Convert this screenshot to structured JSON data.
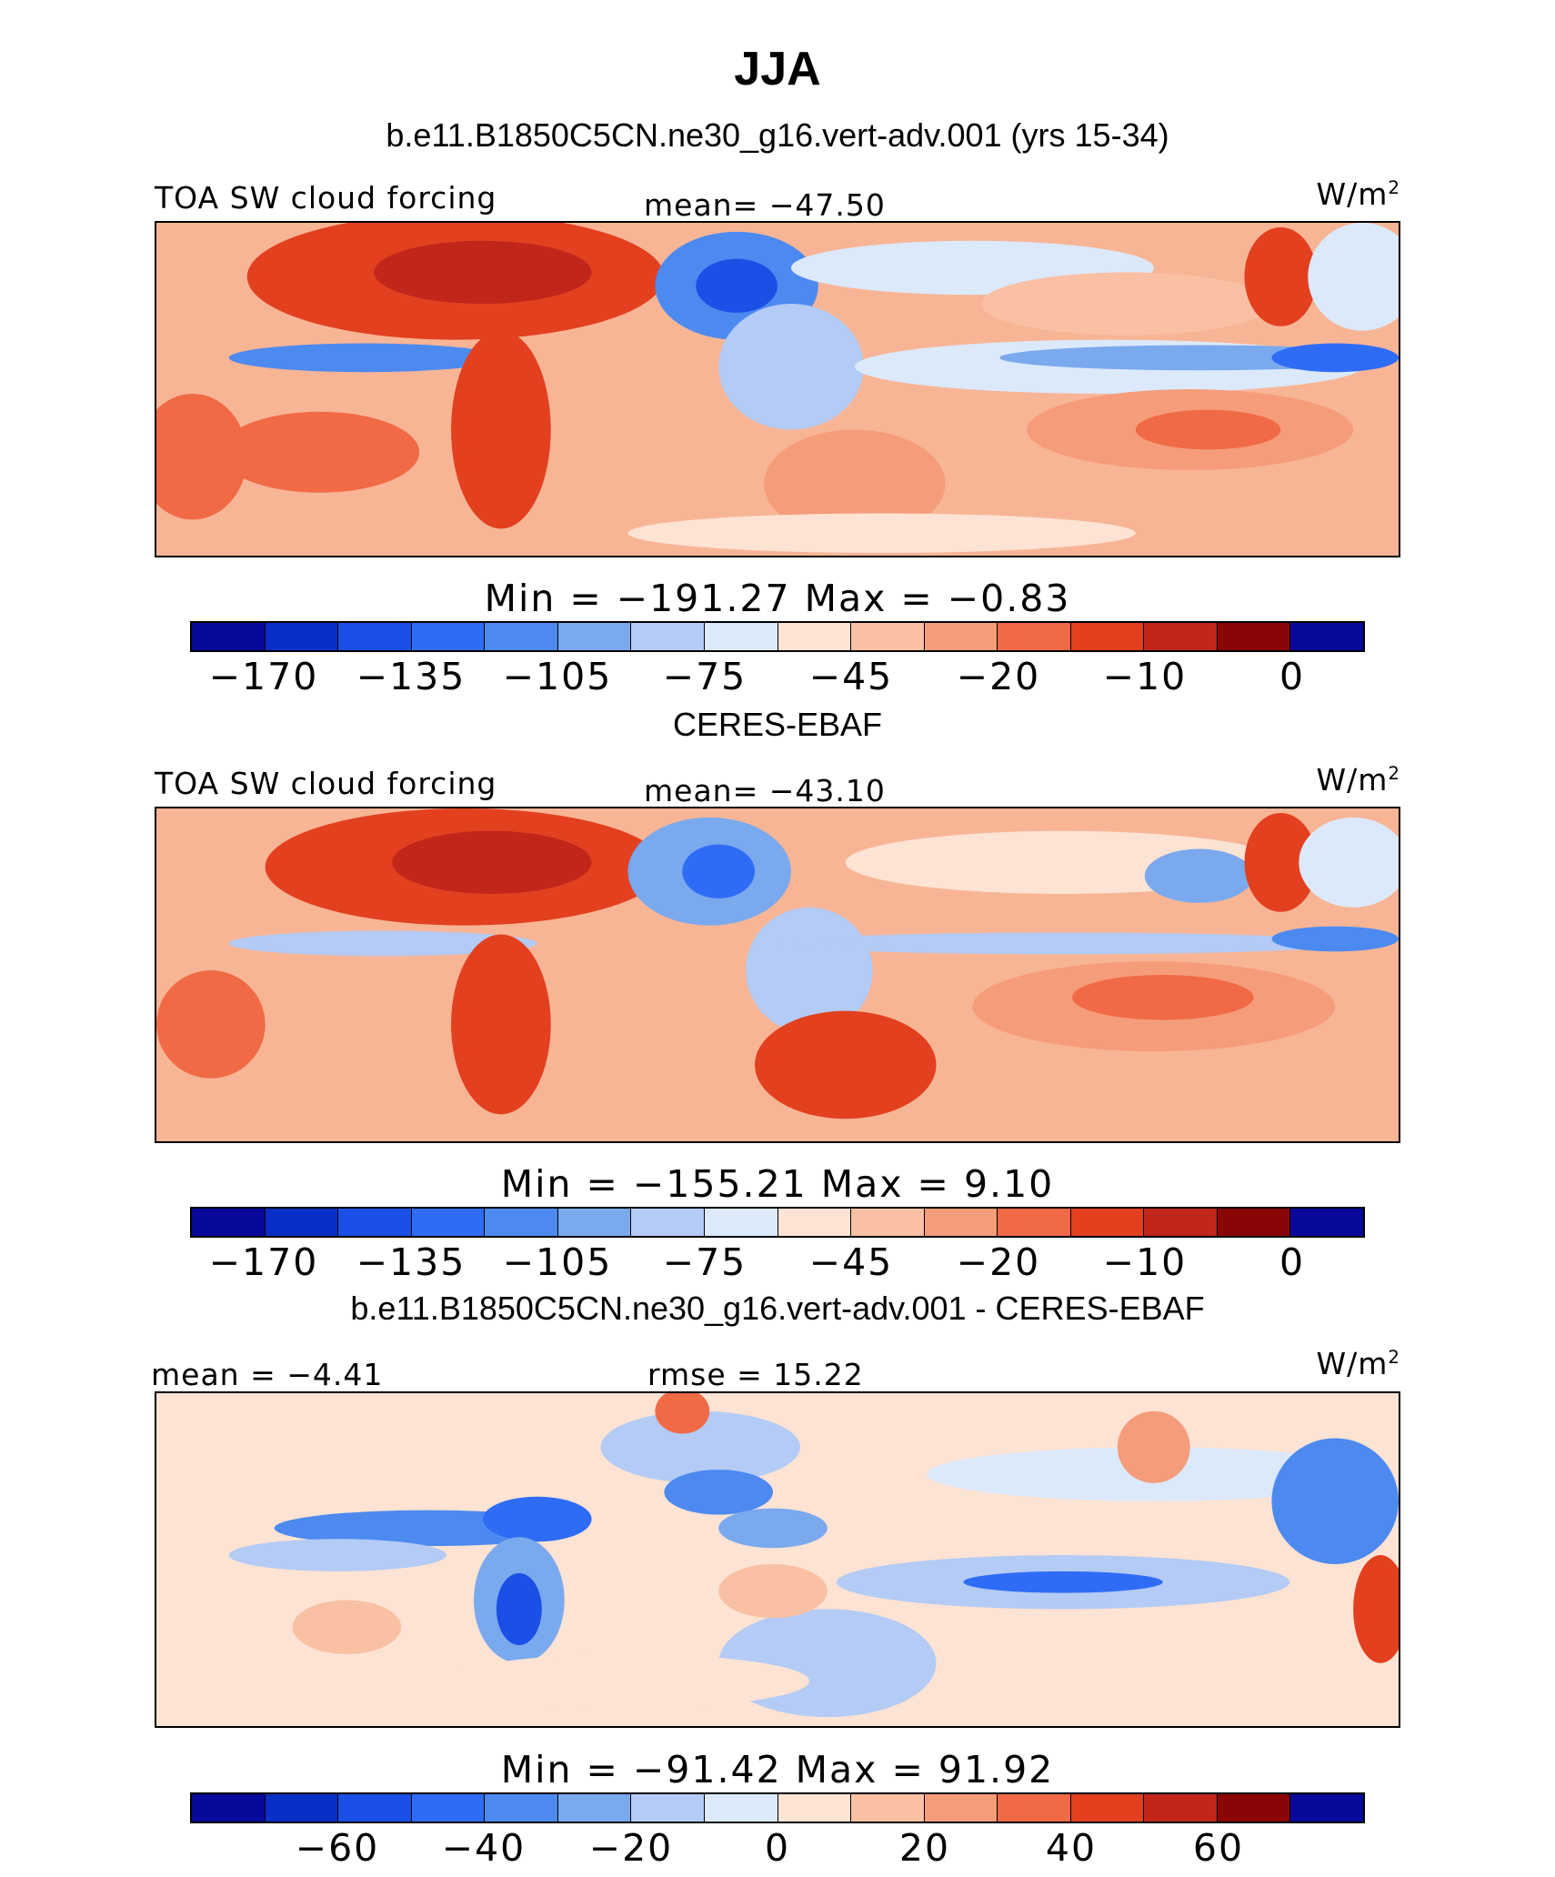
{
  "title": "JJA",
  "colorbar_colors": [
    "#08089a",
    "#0a2fc6",
    "#1a50e6",
    "#2f6cf6",
    "#4d8af0",
    "#7aa9ee",
    "#b3cbf5",
    "#dce9fb",
    "#fde3d3",
    "#f9c0a4",
    "#f59c7a",
    "#f06a45",
    "#e2401f",
    "#c0261a",
    "#8a0606"
  ],
  "chart_data": [
    {
      "type": "heatmap",
      "panel_title": "b.e11.B1850C5CN.ne30_g16.vert-adv.001 (yrs 15-34)",
      "left_label": "TOA SW cloud forcing",
      "center_label": "mean= −47.50",
      "units": "W/m",
      "units_sup": "2",
      "min_max": "Min  =  −191.27  Max  =    −0.83",
      "colorbar_ticks": [
        "−170",
        "−135",
        "−105",
        "−75",
        "−45",
        "−20",
        "−10",
        "0"
      ],
      "mean": -47.5,
      "min": -191.27,
      "max": -0.83
    },
    {
      "type": "heatmap",
      "panel_title": "CERES-EBAF",
      "left_label": "TOA SW cloud forcing",
      "center_label": "mean= −43.10",
      "units": "W/m",
      "units_sup": "2",
      "min_max": "Min  =  −155.21  Max  =     9.10",
      "colorbar_ticks": [
        "−170",
        "−135",
        "−105",
        "−75",
        "−45",
        "−20",
        "−10",
        "0"
      ],
      "mean": -43.1,
      "min": -155.21,
      "max": 9.1
    },
    {
      "type": "heatmap",
      "panel_title": "b.e11.B1850C5CN.ne30_g16.vert-adv.001 - CERES-EBAF",
      "left_label": "mean =   −4.41",
      "center_label": "rmse =   15.22",
      "units": "W/m",
      "units_sup": "2",
      "min_max": "Min  =  −91.42  Max  =   91.92",
      "colorbar_ticks": [
        "−60",
        "−40",
        "−20",
        "0",
        "20",
        "40",
        "60"
      ],
      "mean": -4.41,
      "rmse": 15.22,
      "min": -91.42,
      "max": 91.92
    }
  ]
}
